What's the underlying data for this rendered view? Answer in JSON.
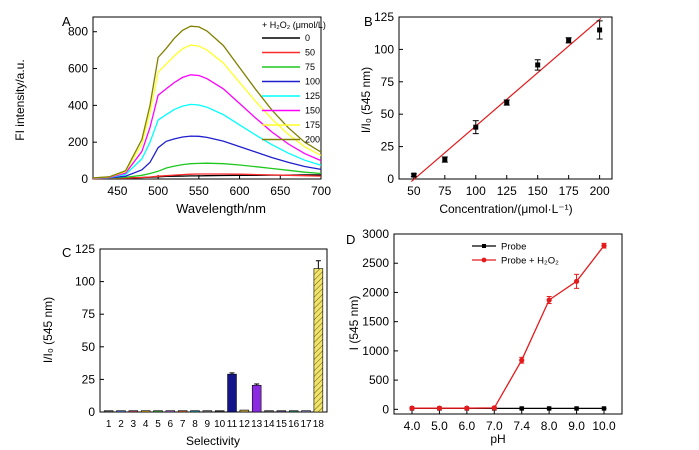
{
  "chart_data": [
    {
      "panel_label": "A",
      "type": "line",
      "xlabel": "Wavelength/nm",
      "ylabel": "FI intensity/a.u.",
      "xlim": [
        420,
        700
      ],
      "ylim": [
        0,
        880
      ],
      "xticks": [
        450,
        500,
        550,
        600,
        650,
        700
      ],
      "yticks": [
        0,
        200,
        400,
        600,
        800
      ],
      "legend_title": "+ H₂O₂ (μmol/L)",
      "legend_position": "top-right",
      "x": [
        420,
        440,
        460,
        480,
        490,
        500,
        510,
        520,
        530,
        540,
        550,
        560,
        580,
        600,
        620,
        640,
        660,
        680,
        700
      ],
      "series": [
        {
          "name": "0",
          "color": "#000000",
          "values": [
            4,
            5,
            6,
            8,
            10,
            12,
            14,
            15,
            16,
            17,
            17,
            18,
            19,
            20,
            20,
            21,
            21,
            22,
            22
          ]
        },
        {
          "name": "50",
          "color": "#ff2a2a",
          "values": [
            2,
            3,
            5,
            8,
            11,
            15,
            18,
            21,
            24,
            26,
            27,
            27,
            27,
            26,
            24,
            22,
            20,
            18,
            16
          ]
        },
        {
          "name": "75",
          "color": "#1ec81e",
          "values": [
            3,
            5,
            9,
            20,
            30,
            42,
            60,
            70,
            78,
            83,
            85,
            86,
            83,
            76,
            67,
            57,
            47,
            37,
            30
          ]
        },
        {
          "name": "100",
          "color": "#1f1fcf",
          "values": [
            3,
            6,
            15,
            50,
            90,
            170,
            205,
            218,
            228,
            233,
            232,
            226,
            206,
            176,
            146,
            116,
            90,
            68,
            52
          ]
        },
        {
          "name": "125",
          "color": "#00ffff",
          "values": [
            4,
            8,
            25,
            110,
            200,
            320,
            350,
            378,
            396,
            405,
            402,
            390,
            350,
            294,
            238,
            186,
            140,
            102,
            75
          ]
        },
        {
          "name": "150",
          "color": "#ff00ff",
          "values": [
            4,
            9,
            32,
            150,
            280,
            455,
            490,
            524,
            552,
            566,
            562,
            545,
            490,
            410,
            330,
            255,
            190,
            138,
            100
          ]
        },
        {
          "name": "175",
          "color": "#ffff2a",
          "values": [
            5,
            11,
            40,
            190,
            360,
            580,
            625,
            670,
            708,
            728,
            722,
            700,
            630,
            525,
            420,
            325,
            242,
            175,
            128
          ]
        },
        {
          "name": "200",
          "color": "#808000",
          "values": [
            6,
            12,
            45,
            215,
            400,
            660,
            710,
            765,
            808,
            830,
            826,
            804,
            725,
            605,
            485,
            373,
            278,
            200,
            146
          ]
        }
      ]
    },
    {
      "panel_label": "B",
      "type": "scatter",
      "xlabel": "Concentration/(μmol·L⁻¹)",
      "ylabel": "I/I₀ (545 nm)",
      "xlim": [
        38,
        210
      ],
      "ylim": [
        0,
        125
      ],
      "xticks": [
        50,
        75,
        100,
        125,
        150,
        175,
        200
      ],
      "yticks": [
        0,
        25,
        50,
        75,
        100,
        125
      ],
      "x": [
        50,
        75,
        100,
        125,
        150,
        175,
        200
      ],
      "values": [
        3,
        15,
        40,
        59,
        88,
        107,
        115
      ],
      "errors": [
        1,
        2,
        5,
        2,
        4,
        2,
        7
      ],
      "fit_line": {
        "color": "#e41a1c",
        "x": [
          48,
          201
        ],
        "y": [
          -2,
          124
        ]
      }
    },
    {
      "panel_label": "C",
      "type": "bar",
      "xlabel": "Selectivity",
      "ylabel": "I/I₀ (545 nm)",
      "ylim": [
        0,
        125
      ],
      "yticks": [
        0,
        25,
        50,
        75,
        100,
        125
      ],
      "categories": [
        "1",
        "2",
        "3",
        "4",
        "5",
        "6",
        "7",
        "8",
        "9",
        "10",
        "11",
        "12",
        "13",
        "14",
        "15",
        "16",
        "17",
        "18"
      ],
      "values": [
        1,
        1,
        1,
        1,
        1,
        1,
        1,
        1,
        1,
        1,
        29,
        1.5,
        20.5,
        1,
        1,
        1,
        1,
        110
      ],
      "errors": [
        0,
        0,
        0,
        0,
        0,
        0,
        0,
        0,
        0,
        0,
        1,
        0,
        1,
        0,
        0,
        0,
        0,
        6
      ],
      "colors": [
        "#555555",
        "#4b7bd6",
        "#c04060",
        "#d8a020",
        "#30a030",
        "#a060c0",
        "#cc6020",
        "#2090a0",
        "#707070",
        "#303030",
        "#15158a",
        "#c9a84a",
        "#8a2be2",
        "#606060",
        "#604080",
        "#208060",
        "#8080c0",
        "#f2e36a"
      ]
    },
    {
      "panel_label": "D",
      "type": "line",
      "xlabel": "pH",
      "ylabel": "I (545 nm)",
      "xlim": [
        3.7,
        10.2
      ],
      "ylim": [
        -80,
        3000
      ],
      "xticks": [
        "4.0",
        "5.0",
        "6.0",
        "7.0",
        "7.4",
        "8.0",
        "9.0",
        "10.0"
      ],
      "yticks": [
        0,
        500,
        1000,
        1500,
        2000,
        2500,
        3000
      ],
      "legend_position": "top-left",
      "x": [
        4.0,
        5.0,
        6.0,
        7.0,
        7.4,
        8.0,
        9.0,
        10.0
      ],
      "series": [
        {
          "name": "Probe",
          "color": "#000000",
          "values": [
            15,
            15,
            15,
            15,
            15,
            15,
            15,
            15
          ],
          "errors": [
            5,
            5,
            5,
            5,
            5,
            5,
            5,
            5
          ]
        },
        {
          "name": "Probe + H₂O₂",
          "color": "#e41a1c",
          "values": [
            20,
            20,
            20,
            25,
            840,
            1870,
            2190,
            2800
          ],
          "errors": [
            10,
            10,
            10,
            15,
            50,
            60,
            120,
            40
          ]
        }
      ]
    }
  ]
}
